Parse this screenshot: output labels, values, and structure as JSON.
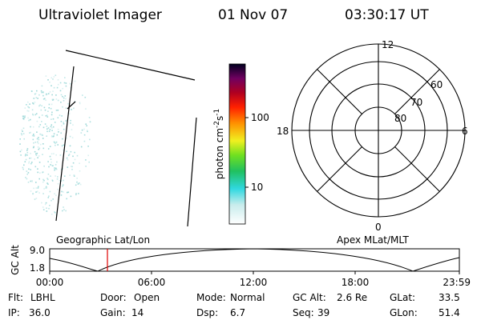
{
  "header": {
    "instrument": "Ultraviolet Imager",
    "date": "01 Nov 07",
    "time": "03:30:17 UT"
  },
  "colorbar": {
    "label": {
      "base": "photon cm",
      "exp1": "-2",
      "unit2": "s",
      "exp2": "-1"
    },
    "ticks": [
      10,
      100
    ]
  },
  "polar": {
    "mlt_labels": [
      "12",
      "6",
      "0",
      "18"
    ],
    "lat_labels": [
      "60",
      "70",
      "80"
    ]
  },
  "orbit_plot": {
    "y_label": "GC Alt",
    "y_ticks": [
      "9.0",
      "1.8"
    ],
    "left_title": "Geographic Lat/Lon",
    "right_title": "Apex MLat/MLT",
    "x_ticks": [
      "00:00",
      "06:00",
      "12:00",
      "18:00",
      "23:59"
    ]
  },
  "info": {
    "rows": [
      [
        {
          "label": "Flt:",
          "value": "LBHL"
        },
        {
          "label": "Door:",
          "value": "Open"
        },
        {
          "label": "Mode:",
          "value": "Normal"
        },
        {
          "label": "GC Alt:",
          "value": "2.6 Re"
        },
        {
          "label": "GLat:",
          "value": "33.5"
        }
      ],
      [
        {
          "label": "IP:",
          "value": "36.0"
        },
        {
          "label": "Gain:",
          "value": "14"
        },
        {
          "label": "Dsp:",
          "value": "6.7"
        },
        {
          "label": "Seq:",
          "value": "39"
        },
        {
          "label": "GLon:",
          "value": "51.4"
        }
      ]
    ]
  }
}
